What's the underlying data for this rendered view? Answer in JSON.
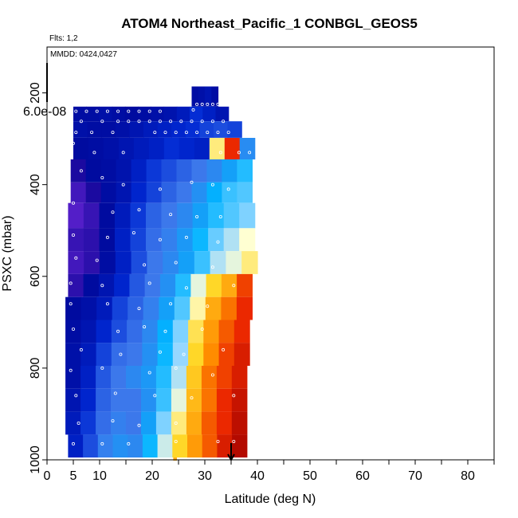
{
  "chart_data": {
    "type": "heatmap",
    "title": "ATOM4 Northeast_Pacific_1 CONBGL_GEOS5",
    "flights_label": "Flts: 1,2",
    "dates_label": "MMDD: 0424,0427",
    "xlabel": "Latitude (deg N)",
    "ylabel": "PSXC (mbar)",
    "xlim": [
      0,
      85
    ],
    "ylim": [
      1000,
      100
    ],
    "x_ticks": [
      0,
      5,
      10,
      20,
      30,
      40,
      50,
      60,
      70,
      80
    ],
    "y_ticks": [
      200,
      400,
      600,
      800,
      1000
    ],
    "colorbar_max_label": "6.0e-08",
    "colorbar_value": 6e-08,
    "arrow_latitude": 35,
    "rows": [
      {
        "p": [
          186,
          230
        ],
        "lat": [
          27.5,
          32.5
        ],
        "vals": [
          0.05,
          0.06,
          0.08,
          0.05
        ]
      },
      {
        "p": [
          230,
          262
        ],
        "lat": [
          5.0,
          34.5
        ],
        "vals": [
          0.05,
          0.05,
          0.06,
          0.05,
          0.04,
          0.05,
          0.06,
          0.07,
          0.1,
          0.16,
          0.12,
          0.08
        ]
      },
      {
        "p": [
          262,
          298
        ],
        "lat": [
          5.0,
          37.0
        ],
        "vals": [
          0.06,
          0.05,
          0.05,
          0.06,
          0.08,
          0.1,
          0.12,
          0.14,
          0.16,
          0.2,
          0.22,
          0.2
        ]
      },
      {
        "p": [
          298,
          345
        ],
        "lat": [
          5.0,
          39.5
        ],
        "vals": [
          0.04,
          0.05,
          0.06,
          0.08,
          0.1,
          0.12,
          0.16,
          0.14,
          0.12,
          0.7,
          0.92,
          0.35
        ]
      },
      {
        "p": [
          345,
          395
        ],
        "lat": [
          4.5,
          39.0
        ],
        "vals": [
          -0.05,
          0.04,
          0.05,
          0.07,
          0.12,
          0.18,
          0.22,
          0.26,
          0.3,
          0.34,
          0.4,
          0.48
        ]
      },
      {
        "p": [
          395,
          440
        ],
        "lat": [
          4.5,
          39.0
        ],
        "vals": [
          -0.12,
          -0.05,
          0.05,
          0.08,
          0.14,
          0.2,
          0.26,
          0.3,
          0.36,
          0.44,
          0.5,
          0.52
        ]
      },
      {
        "p": [
          440,
          495
        ],
        "lat": [
          4.0,
          39.5
        ],
        "vals": [
          -0.15,
          -0.1,
          0.04,
          0.1,
          0.18,
          0.26,
          0.3,
          0.34,
          0.4,
          0.48,
          0.52,
          0.56
        ]
      },
      {
        "p": [
          495,
          545
        ],
        "lat": [
          4.0,
          39.5
        ],
        "vals": [
          -0.1,
          -0.08,
          0.04,
          0.12,
          0.2,
          0.28,
          0.32,
          0.38,
          0.46,
          0.54,
          0.6,
          0.66
        ]
      },
      {
        "p": [
          545,
          595
        ],
        "lat": [
          4.0,
          40.0
        ],
        "vals": [
          -0.12,
          -0.08,
          0.05,
          0.12,
          0.22,
          0.3,
          0.34,
          0.4,
          0.5,
          0.6,
          0.64,
          0.7
        ]
      },
      {
        "p": [
          595,
          645
        ],
        "lat": [
          4.0,
          39.0
        ],
        "vals": [
          -0.08,
          0.04,
          0.08,
          0.14,
          0.24,
          0.3,
          0.36,
          0.48,
          0.64,
          0.74,
          0.8,
          0.9
        ]
      },
      {
        "p": [
          645,
          695
        ],
        "lat": [
          3.5,
          39.0
        ],
        "vals": [
          0.04,
          0.06,
          0.1,
          0.2,
          0.26,
          0.32,
          0.4,
          0.52,
          0.68,
          0.8,
          0.86,
          0.92
        ]
      },
      {
        "p": [
          695,
          745
        ],
        "lat": [
          3.5,
          38.5
        ],
        "vals": [
          0.05,
          0.08,
          0.14,
          0.22,
          0.28,
          0.34,
          0.44,
          0.56,
          0.72,
          0.82,
          0.88,
          0.92
        ]
      },
      {
        "p": [
          745,
          795
        ],
        "lat": [
          3.5,
          38.5
        ],
        "vals": [
          0.06,
          0.1,
          0.2,
          0.28,
          0.3,
          0.36,
          0.46,
          0.58,
          0.74,
          0.84,
          0.9,
          0.94
        ]
      },
      {
        "p": [
          795,
          845
        ],
        "lat": [
          3.5,
          38.0
        ],
        "vals": [
          0.06,
          0.12,
          0.24,
          0.3,
          0.34,
          0.38,
          0.48,
          0.6,
          0.76,
          0.86,
          0.9,
          0.94
        ]
      },
      {
        "p": [
          845,
          895
        ],
        "lat": [
          3.5,
          38.0
        ],
        "vals": [
          0.08,
          0.14,
          0.26,
          0.3,
          0.3,
          0.36,
          0.5,
          0.64,
          0.78,
          0.86,
          0.92,
          0.96
        ]
      },
      {
        "p": [
          895,
          945
        ],
        "lat": [
          3.5,
          38.0
        ],
        "vals": [
          0.1,
          0.18,
          0.28,
          0.32,
          0.3,
          0.4,
          0.56,
          0.7,
          0.8,
          0.88,
          0.92,
          0.97
        ]
      },
      {
        "p": [
          945,
          995
        ],
        "lat": [
          4.0,
          38.0
        ],
        "vals": [
          0.12,
          0.22,
          0.32,
          0.36,
          0.34,
          0.46,
          0.62,
          0.74,
          0.82,
          0.88,
          0.94,
          0.98
        ]
      },
      {
        "p": [
          995,
          1010
        ],
        "lat": [
          24.0,
          24.6
        ],
        "vals": [
          0.8
        ]
      }
    ],
    "obs_points": [
      [
        28.5,
        225
      ],
      [
        29.5,
        225
      ],
      [
        30.5,
        225
      ],
      [
        31.5,
        225
      ],
      [
        32.5,
        225
      ],
      [
        27.8,
        237
      ],
      [
        5.5,
        240
      ],
      [
        7.5,
        240
      ],
      [
        9.5,
        240
      ],
      [
        11.5,
        240
      ],
      [
        13.5,
        240
      ],
      [
        15.5,
        240
      ],
      [
        17.5,
        240
      ],
      [
        19.5,
        240
      ],
      [
        21.5,
        240
      ],
      [
        6.5,
        262
      ],
      [
        10.5,
        262
      ],
      [
        13.5,
        262
      ],
      [
        15.5,
        262
      ],
      [
        17.5,
        262
      ],
      [
        19.5,
        262
      ],
      [
        21.5,
        262
      ],
      [
        23.5,
        262
      ],
      [
        25.5,
        262
      ],
      [
        27.5,
        262
      ],
      [
        29.5,
        262
      ],
      [
        31.5,
        262
      ],
      [
        33.5,
        262
      ],
      [
        5.5,
        286
      ],
      [
        8.5,
        286
      ],
      [
        12.5,
        286
      ],
      [
        20.5,
        286
      ],
      [
        22.5,
        286
      ],
      [
        24.5,
        286
      ],
      [
        26.5,
        286
      ],
      [
        28.5,
        286
      ],
      [
        30.5,
        286
      ],
      [
        32.5,
        286
      ],
      [
        34.5,
        286
      ],
      [
        5.0,
        310
      ],
      [
        9.0,
        330
      ],
      [
        14.5,
        330
      ],
      [
        33.0,
        330
      ],
      [
        36.5,
        330
      ],
      [
        38.5,
        330
      ],
      [
        6.5,
        370
      ],
      [
        10.5,
        385
      ],
      [
        14.5,
        400
      ],
      [
        21.5,
        410
      ],
      [
        27.5,
        395
      ],
      [
        31.5,
        400
      ],
      [
        34.5,
        410
      ],
      [
        5.0,
        440
      ],
      [
        12.5,
        460
      ],
      [
        17.5,
        455
      ],
      [
        23.5,
        465
      ],
      [
        28.5,
        470
      ],
      [
        33.0,
        470
      ],
      [
        5.0,
        510
      ],
      [
        11.5,
        515
      ],
      [
        16.5,
        505
      ],
      [
        21.5,
        520
      ],
      [
        26.5,
        515
      ],
      [
        32.5,
        525
      ],
      [
        5.5,
        560
      ],
      [
        9.5,
        565
      ],
      [
        18.5,
        575
      ],
      [
        24.5,
        570
      ],
      [
        31.5,
        580
      ],
      [
        4.5,
        615
      ],
      [
        10.5,
        620
      ],
      [
        19.5,
        615
      ],
      [
        26.5,
        625
      ],
      [
        35.5,
        620
      ],
      [
        4.5,
        660
      ],
      [
        11.5,
        660
      ],
      [
        17.5,
        670
      ],
      [
        23.5,
        660
      ],
      [
        30.5,
        665
      ],
      [
        5.0,
        715
      ],
      [
        13.5,
        720
      ],
      [
        18.5,
        710
      ],
      [
        22.5,
        720
      ],
      [
        29.5,
        715
      ],
      [
        6.5,
        760
      ],
      [
        14.0,
        770
      ],
      [
        21.5,
        765
      ],
      [
        26.0,
        770
      ],
      [
        33.5,
        760
      ],
      [
        4.5,
        805
      ],
      [
        10.5,
        800
      ],
      [
        19.5,
        810
      ],
      [
        24.5,
        800
      ],
      [
        31.5,
        815
      ],
      [
        5.5,
        860
      ],
      [
        13.0,
        855
      ],
      [
        20.5,
        860
      ],
      [
        27.5,
        865
      ],
      [
        35.5,
        860
      ],
      [
        6.0,
        920
      ],
      [
        12.5,
        915
      ],
      [
        17.5,
        925
      ],
      [
        24.5,
        920
      ],
      [
        5.0,
        965
      ],
      [
        10.5,
        965
      ],
      [
        15.5,
        965
      ],
      [
        24.5,
        960
      ],
      [
        32.5,
        960
      ],
      [
        35.5,
        960
      ]
    ]
  }
}
